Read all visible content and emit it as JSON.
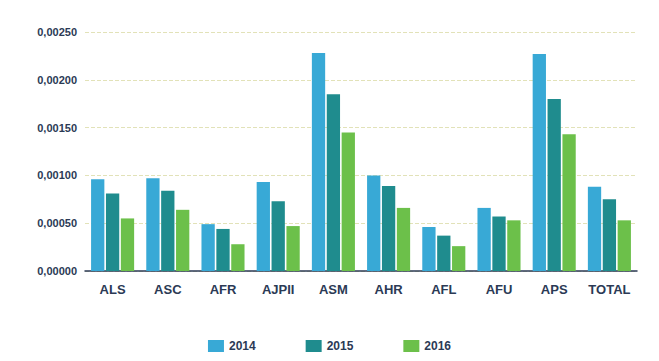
{
  "chart_data": {
    "type": "bar",
    "categories": [
      "ALS",
      "ASC",
      "AFR",
      "AJPII",
      "ASM",
      "AHR",
      "AFL",
      "AFU",
      "APS",
      "TOTAL"
    ],
    "series": [
      {
        "name": "2014",
        "color": "#38a9d6",
        "values": [
          0.00096,
          0.00097,
          0.00049,
          0.00093,
          0.00228,
          0.001,
          0.00046,
          0.00066,
          0.00227,
          0.00088
        ]
      },
      {
        "name": "2015",
        "color": "#1f8c8e",
        "values": [
          0.00081,
          0.00084,
          0.00044,
          0.00073,
          0.00185,
          0.00089,
          0.00037,
          0.00057,
          0.0018,
          0.00075
        ]
      },
      {
        "name": "2016",
        "color": "#6cc04a",
        "values": [
          0.00055,
          0.00064,
          0.00028,
          0.00047,
          0.00145,
          0.00066,
          0.00026,
          0.00053,
          0.00143,
          0.00053
        ]
      }
    ],
    "ylim": [
      0,
      0.0025
    ],
    "yticks": [
      {
        "value": 0,
        "label": "0,00000"
      },
      {
        "value": 0.0005,
        "label": "0,00050"
      },
      {
        "value": 0.001,
        "label": "0,00100"
      },
      {
        "value": 0.0015,
        "label": "0,00150"
      },
      {
        "value": 0.002,
        "label": "0,00200"
      },
      {
        "value": 0.0025,
        "label": "0,00250"
      }
    ],
    "grid": true,
    "legend": "bottom"
  }
}
